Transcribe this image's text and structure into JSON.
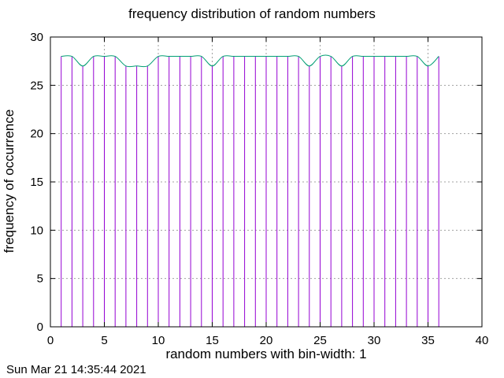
{
  "title": "frequency distribution of random numbers",
  "timestamp": "Sun Mar 21 14:35:44 2021",
  "colors": {
    "impulse": "#9400d3",
    "smooth": "#009e73",
    "grid": "#a0a0a0",
    "axis": "#000000"
  },
  "chart_data": {
    "type": "bar",
    "title": "frequency distribution of random numbers",
    "xlabel": "random numbers with bin-width: 1",
    "ylabel": "frequency of occurrence",
    "xlim": [
      0,
      40
    ],
    "ylim": [
      0,
      30
    ],
    "xticks": [
      0,
      5,
      10,
      15,
      20,
      25,
      30,
      35,
      40
    ],
    "yticks": [
      0,
      5,
      10,
      15,
      20,
      25,
      30
    ],
    "grid": true,
    "series": [
      {
        "style": "impulses",
        "x": [
          1,
          2,
          3,
          4,
          5,
          6,
          7,
          8,
          9,
          10,
          11,
          12,
          13,
          14,
          15,
          16,
          17,
          18,
          19,
          20,
          21,
          22,
          23,
          24,
          25,
          26,
          27,
          28,
          29,
          30,
          31,
          32,
          33,
          34,
          35,
          36
        ],
        "values": [
          28,
          28,
          27,
          28,
          28,
          28,
          27,
          27,
          27,
          28,
          28,
          28,
          28,
          28,
          27,
          28,
          28,
          28,
          28,
          28,
          28,
          28,
          28,
          27,
          28,
          28,
          27,
          28,
          28,
          28,
          28,
          28,
          28,
          28,
          27,
          28
        ]
      },
      {
        "style": "smooth",
        "x": [
          1,
          2,
          3,
          4,
          5,
          6,
          7,
          8,
          9,
          10,
          11,
          12,
          13,
          14,
          15,
          16,
          17,
          18,
          19,
          20,
          21,
          22,
          23,
          24,
          25,
          26,
          27,
          28,
          29,
          30,
          31,
          32,
          33,
          34,
          35,
          36
        ],
        "values": [
          28,
          28,
          27,
          28,
          28,
          28,
          27,
          27,
          27,
          28,
          28,
          28,
          28,
          28,
          27,
          28,
          28,
          28,
          28,
          28,
          28,
          28,
          28,
          27,
          28,
          28,
          27,
          28,
          28,
          28,
          28,
          28,
          28,
          28,
          27,
          28
        ]
      }
    ]
  }
}
